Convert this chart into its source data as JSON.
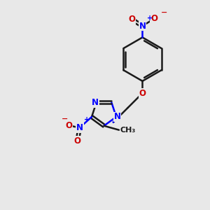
{
  "background_color": "#e8e8e8",
  "bond_color": "#1a1a1a",
  "nitrogen_color": "#0000ff",
  "oxygen_color": "#cc0000",
  "line_width": 1.8,
  "figsize": [
    3.0,
    3.0
  ],
  "dpi": 100,
  "xlim": [
    0,
    10
  ],
  "ylim": [
    0,
    10
  ]
}
